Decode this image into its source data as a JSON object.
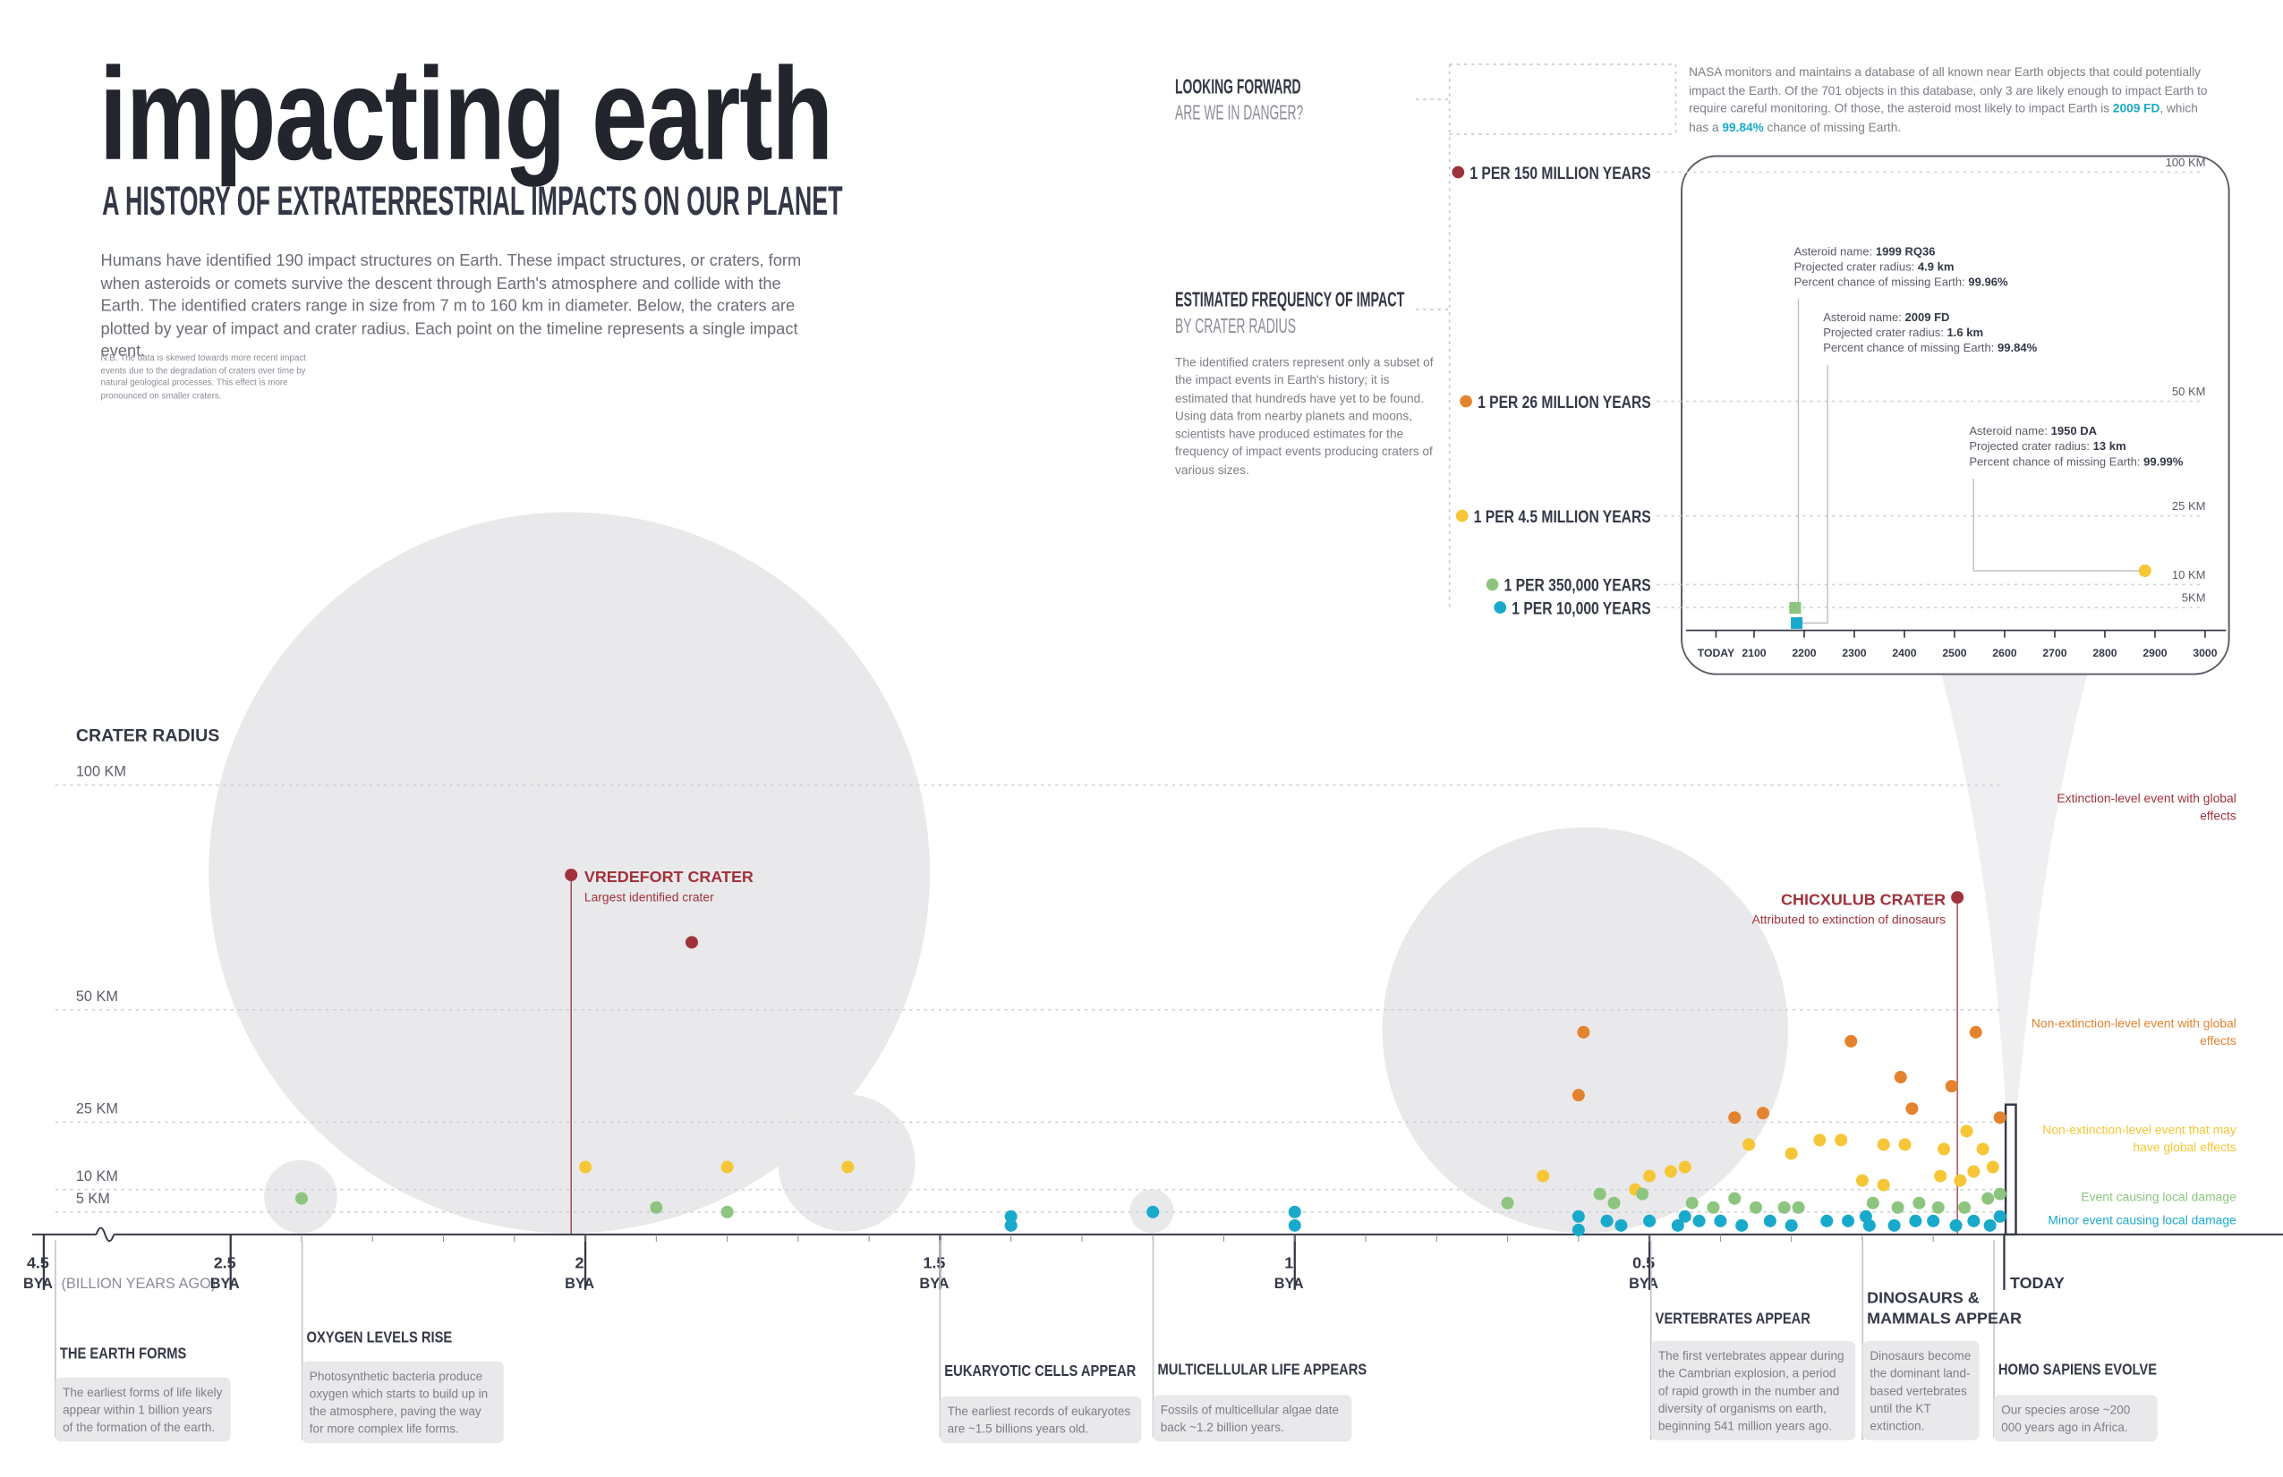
{
  "header": {
    "title": "impacting earth",
    "subtitle": "A HISTORY OF EXTRATERRESTRIAL IMPACTS ON OUR PLANET",
    "intro": "Humans have identified 190 impact structures on Earth. These impact structures, or craters, form when asteroids or comets survive the descent through Earth's atmosphere and collide with the Earth.  The identified craters range in size from 7 m to 160 km in diameter. Below, the craters are plotted by year of impact and crater radius. Each point on the timeline represents a single impact event.",
    "note": "N.B. The data is skewed towards more recent impact events due to the degradation of craters over time by natural geological processes. This effect is more pronounced on smaller craters."
  },
  "looking_forward": {
    "title": "LOOKING FORWARD",
    "subtitle": "ARE WE IN DANGER?",
    "text": [
      "NASA monitors and maintains a database of all known near Earth objects that could potentially impact the Earth. Of the 701 objects in this database, only 3 are likely enough to impact Earth to require careful monitoring. Of those, the asteroid most likely to impact Earth is ",
      "2009 FD",
      ", which has a ",
      "99.84%",
      " chance of missing Earth."
    ]
  },
  "frequency": {
    "title": "ESTIMATED FREQUENCY OF IMPACT",
    "subtitle": "BY CRATER RADIUS",
    "text": "The identified craters represent only a subset of the impact events in Earth's history; it is estimated that hundreds have yet to be found. Using data from nearby planets and moons, scientists have produced estimates for the frequency of impact events producing craters of various sizes.",
    "rates": [
      "1 PER 150 MILLION YEARS",
      "1 PER 26 MILLION YEARS",
      "1 PER 4.5 MILLION YEARS",
      "1 PER 350,000 YEARS",
      "1 PER 10,000 YEARS"
    ]
  },
  "events": [
    {
      "title": "THE EARTH FORMS",
      "text": "The earliest forms of life likely appear within 1 billion years of the formation of the earth."
    },
    {
      "title": "OXYGEN LEVELS RISE",
      "text": "Photosynthetic bacteria produce oxygen which starts to build up in the atmosphere, paving the way for more complex life forms."
    },
    {
      "title": "EUKARYOTIC CELLS APPEAR",
      "text": "The earliest records of eukaryotes are ~1.5 billions years old."
    },
    {
      "title": "MULTICELLULAR LIFE APPEARS",
      "text": "Fossils of multicellular algae date back ~1.2 billion years."
    },
    {
      "title": "VERTEBRATES APPEAR",
      "text": "The first vertebrates appear during the Cambrian explosion, a period of rapid growth in the number and diversity of organisms on earth, beginning 541 million years ago."
    },
    {
      "title": "DINOSAURS & MAMMALS APPEAR",
      "text": "Dinosaurs become the dominant land-based vertebrates until the KT extinction."
    },
    {
      "title": "HOMO SAPIENS EVOLVE",
      "text": "Our species arose ~200 000 years ago in Africa."
    }
  ],
  "chart_data": [
    {
      "type": "scatter",
      "title": "CRATER RADIUS",
      "xlim": [
        2.5,
        0
      ],
      "xticks": [
        4.5,
        2.5,
        2,
        1.5,
        1,
        0.5,
        {
          "value": 0,
          "label": "TODAY"
        }
      ],
      "x_unit": "BYA",
      "x_axis_label": "(BILLION YEARS AGO)",
      "ylim": [
        0,
        100
      ],
      "yticks": [
        {
          "value": 5,
          "label": "5 KM"
        },
        {
          "value": 10,
          "label": "10 KM"
        },
        {
          "value": 25,
          "label": "25 KM"
        },
        {
          "value": 50,
          "label": "50 KM"
        },
        {
          "value": 100,
          "label": "100 KM"
        }
      ],
      "grid": true,
      "series": [
        {
          "name": "Extinction-level event with global effects",
          "color": "#a0323b",
          "x": [
            2.02,
            1.85,
            0.066
          ],
          "values": [
            80,
            65,
            75
          ]
        },
        {
          "name": "Non-extinction-level event with global effects",
          "color": "#e4832f",
          "x": [
            0.593,
            0.6,
            0.38,
            0.34,
            0.216,
            0.146,
            0.13,
            0.074,
            0.04,
            0.006
          ],
          "values": [
            45,
            31,
            26,
            27,
            43,
            35,
            28,
            33,
            45,
            26
          ]
        },
        {
          "name": "Non-extinction-level event that may have  global effects",
          "color": "#f6c636",
          "x": [
            2.0,
            1.8,
            1.63,
            0.65,
            0.52,
            0.5,
            0.47,
            0.45,
            0.36,
            0.3,
            0.26,
            0.23,
            0.2,
            0.17,
            0.17,
            0.14,
            0.09,
            0.085,
            0.062,
            0.053,
            0.043,
            0.03,
            0.016
          ],
          "values": [
            15,
            15,
            15,
            13,
            10,
            13,
            14,
            15,
            20,
            18,
            21,
            21,
            12,
            11,
            20,
            20,
            13,
            19,
            12,
            23,
            14,
            19,
            15
          ]
        },
        {
          "name": "Event causing local damage",
          "color": "#8dc580",
          "x": [
            2.4,
            1.9,
            1.8,
            0.7,
            0.57,
            0.55,
            0.51,
            0.44,
            0.41,
            0.38,
            0.35,
            0.31,
            0.29,
            0.185,
            0.15,
            0.12,
            0.093,
            0.056,
            0.023,
            0.006
          ],
          "values": [
            8,
            6,
            5,
            7,
            9,
            7,
            9,
            7,
            6,
            8,
            6,
            6,
            6,
            7,
            6,
            7,
            6,
            6,
            8,
            9
          ]
        },
        {
          "name": "Minor event causing local damage",
          "color": "#19aacb",
          "x": [
            1.4,
            1.4,
            1.2,
            1.0,
            1.0,
            0.6,
            0.6,
            0.56,
            0.54,
            0.5,
            0.46,
            0.45,
            0.43,
            0.4,
            0.37,
            0.33,
            0.3,
            0.25,
            0.22,
            0.195,
            0.19,
            0.155,
            0.125,
            0.1,
            0.068,
            0.043,
            0.02,
            0.006
          ],
          "values": [
            4,
            2,
            5,
            5,
            2,
            4,
            1,
            3,
            2,
            3,
            2,
            4,
            3,
            3,
            2,
            3,
            2,
            3,
            3,
            4,
            2,
            2,
            3,
            3,
            2,
            3,
            2,
            4
          ]
        }
      ],
      "annotations": [
        {
          "title": "VREDEFORT CRATER",
          "text": "Largest identified crater"
        },
        {
          "title": "CHICXULUB CRATER",
          "text": "Attributed to extinction of dinosaurs"
        }
      ]
    },
    {
      "type": "scatter",
      "xlim": [
        1960,
        3020
      ],
      "xticks": [
        {
          "value": 2024,
          "label": "TODAY"
        },
        2100,
        2200,
        2300,
        2400,
        2500,
        2600,
        2700,
        2800,
        2900,
        3000
      ],
      "ylim": [
        0,
        100
      ],
      "yticks": [
        {
          "value": 5,
          "label": "5KM"
        },
        {
          "value": 10,
          "label": "10 KM"
        },
        {
          "value": 25,
          "label": "25 KM"
        },
        {
          "value": 50,
          "label": "50 KM"
        },
        {
          "value": 100,
          "label": "100 KM"
        }
      ],
      "field_labels": [
        "Asteroid name:",
        "Projected crater radius:",
        "Percent chance of missing Earth:"
      ],
      "names": [
        "1999 RQ36",
        "2009 FD",
        "1950 DA"
      ],
      "x": [
        2182,
        2185,
        2880
      ],
      "values": [
        4.9,
        1.6,
        13
      ],
      "value_labels": [
        "4.9 km",
        "1.6 km",
        "13 km"
      ],
      "miss_chance": [
        "99.96%",
        "99.84%",
        "99.99%"
      ],
      "colors": [
        "#8dc580",
        "#19aacb",
        "#f6c636"
      ],
      "markers": [
        "square",
        "square",
        "circle"
      ]
    }
  ]
}
